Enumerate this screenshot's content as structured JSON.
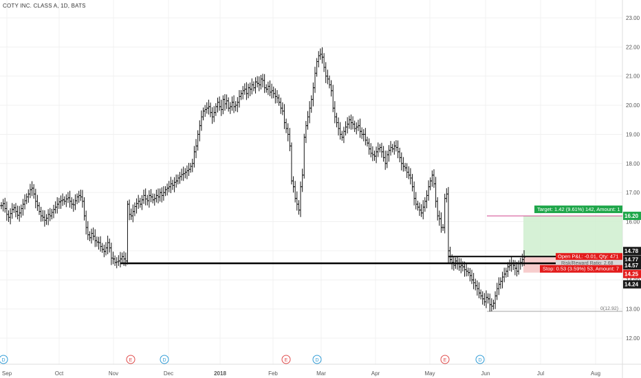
{
  "header": {
    "symbol_line": "COTY INC. CLASS A, 1D, BATS"
  },
  "chart_data": {
    "type": "ohlc",
    "title": "COTY INC. CLASS A, 1D, BATS",
    "ylim": [
      11.5,
      23.3
    ],
    "y_ticks": [
      "12.00",
      "13.00",
      "14.00",
      "15.00",
      "16.00",
      "17.00",
      "18.00",
      "19.00",
      "20.00",
      "21.00",
      "22.00",
      "23.00"
    ],
    "x_ticks": [
      "Sep",
      "Oct",
      "Nov",
      "Dec",
      "2018",
      "Feb",
      "Mar",
      "Apr",
      "May",
      "Jun",
      "Jul",
      "Aug"
    ],
    "grid": true,
    "series": [
      {
        "values": [
          16.55,
          16.62,
          16.45,
          16.25,
          16.15,
          16.28,
          16.42,
          16.48,
          16.35,
          16.22,
          16.3,
          16.45,
          16.6,
          16.72,
          16.85,
          16.95,
          17.1,
          17.15,
          16.95,
          16.7,
          16.55,
          16.35,
          16.2,
          16.15,
          16.05,
          16.12,
          16.25,
          16.2,
          16.32,
          16.42,
          16.5,
          16.6,
          16.68,
          16.72,
          16.75,
          16.7,
          16.78,
          16.82,
          16.7,
          16.6,
          16.58,
          16.72,
          16.85,
          16.9,
          16.85,
          16.7,
          16.2,
          15.8,
          15.55,
          15.45,
          15.6,
          15.5,
          15.35,
          15.3,
          15.28,
          15.15,
          15.05,
          14.98,
          15.1,
          15.28,
          15.1,
          14.75,
          14.72,
          14.6,
          14.62,
          14.65,
          14.72,
          14.8,
          14.72,
          14.65,
          16.6,
          16.25,
          16.2,
          16.35,
          16.52,
          16.62,
          16.7,
          16.6,
          16.75,
          16.9,
          16.78,
          16.72,
          16.9,
          16.85,
          16.75,
          16.8,
          16.9,
          16.85,
          17.0,
          16.9,
          17.0,
          17.1,
          17.15,
          17.2,
          17.3,
          17.25,
          17.35,
          17.4,
          17.5,
          17.55,
          17.62,
          17.65,
          17.7,
          17.75,
          17.8,
          17.9,
          18.0,
          18.4,
          18.6,
          19.0,
          19.3,
          19.6,
          19.8,
          19.85,
          19.9,
          19.95,
          19.75,
          19.6,
          19.75,
          19.95,
          20.1,
          19.95,
          19.85,
          20.2,
          20.05,
          20.15,
          19.9,
          19.95,
          20.1,
          19.95,
          20.0,
          20.1,
          20.3,
          20.4,
          20.5,
          20.55,
          20.4,
          20.6,
          20.55,
          20.7,
          20.6,
          20.8,
          20.75,
          20.7,
          20.9,
          20.85,
          20.6,
          20.55,
          20.65,
          20.45,
          20.5,
          20.4,
          20.3,
          20.25,
          20.1,
          19.9,
          19.8,
          19.4,
          19.2,
          19.0,
          18.6,
          17.4,
          17.2,
          16.8,
          16.6,
          16.4,
          17.2,
          17.6,
          18.9,
          19.3,
          19.6,
          19.9,
          20.2,
          20.6,
          21.1,
          21.5,
          21.7,
          21.75,
          21.65,
          21.3,
          21.0,
          20.9,
          20.7,
          20.5,
          19.9,
          19.6,
          19.4,
          19.2,
          19.0,
          18.9,
          19.1,
          19.25,
          19.35,
          19.5,
          19.4,
          19.35,
          19.2,
          19.25,
          19.3,
          19.1,
          19.0,
          19.0,
          18.8,
          18.7,
          18.5,
          18.35,
          18.3,
          18.25,
          18.4,
          18.5,
          18.55,
          18.4,
          18.2,
          18.0,
          18.3,
          18.45,
          18.55,
          18.5,
          18.6,
          18.55,
          18.4,
          18.2,
          18.0,
          17.9,
          17.85,
          17.7,
          17.6,
          17.5,
          17.2,
          16.8,
          16.6,
          16.5,
          16.4,
          16.3,
          16.5,
          16.7,
          16.9,
          17.2,
          17.4,
          17.6,
          17.3,
          16.7,
          16.2,
          16.1,
          15.8,
          15.8,
          16.8,
          16.95,
          15.0,
          14.7,
          14.6,
          14.5,
          14.65,
          14.55,
          14.45,
          14.5,
          14.45,
          14.35,
          14.3,
          14.25,
          14.15,
          14.0,
          13.9,
          13.8,
          13.7,
          13.55,
          13.45,
          13.35,
          13.25,
          13.4,
          13.35,
          13.15,
          13.1,
          13.2,
          13.45,
          13.7,
          13.85,
          13.95,
          14.1,
          14.2,
          14.3,
          14.45,
          14.5,
          14.55,
          14.5,
          14.4,
          14.3,
          14.55,
          14.6,
          14.7,
          14.78
        ]
      }
    ],
    "levels": {
      "black_support": 14.57,
      "position_box_black": 14.78,
      "zero_line": 12.92,
      "target_line": 16.2
    },
    "price_labels": [
      {
        "text": "16.20",
        "color": "#1fa64a"
      },
      {
        "text": "14.78",
        "color": "#1a1a1a"
      },
      {
        "text": "14.77",
        "color": "#1a1a1a"
      },
      {
        "text": "14.57",
        "color": "#1a1a1a"
      },
      {
        "text": "14.25",
        "color": "#e31b1b"
      },
      {
        "text": "14.24",
        "color": "#1a1a1a"
      }
    ],
    "annotations": {
      "target_text": "Target: 1.42 (9.61%) 142, Amount: 1",
      "open_pl_text": "Open P&L: -0.01, Qty: 471",
      "rr_text": "Risk/Reward Ratio: 2.68",
      "stop_text": "Stop: 0.53 (3.59%) 53, Amount: 7",
      "zero_text": "0(12.92)"
    },
    "event_markers": [
      {
        "type": "D",
        "x_month": "Sep"
      },
      {
        "type": "E",
        "x_month": "Nov"
      },
      {
        "type": "D",
        "x_month": "Dec"
      },
      {
        "type": "E",
        "x_month": "Feb"
      },
      {
        "type": "D",
        "x_month": "Feb"
      },
      {
        "type": "E",
        "x_month": "May"
      },
      {
        "type": "D",
        "x_month": "Jun"
      }
    ]
  },
  "colors": {
    "bar": "#111111",
    "grid": "#f0f0f0",
    "axis_text": "#555555",
    "target_fill": "#cfeecf",
    "stop_fill": "#f6c8c8",
    "target_line": "#d1408d",
    "green_label": "#1fa64a",
    "red_label": "#e31b1b",
    "dividend": "#2e9bd6",
    "earnings": "#e04a4a"
  }
}
